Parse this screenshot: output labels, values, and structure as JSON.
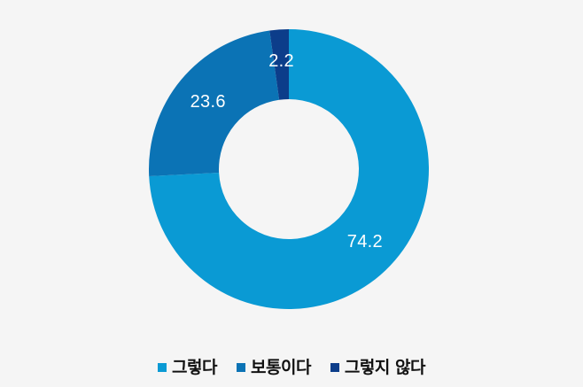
{
  "chart_data": {
    "type": "pie",
    "variant": "donut",
    "title": "",
    "categories": [
      "그렇다",
      "보통이다",
      "그렇지 않다"
    ],
    "values": [
      74.2,
      23.6,
      2.2
    ],
    "colors": [
      "#0a9ad4",
      "#0b73b5",
      "#0c3d8a"
    ],
    "data_labels": [
      "74.2",
      "23.6",
      "2.2"
    ],
    "start_angle_deg": 0,
    "direction": "clockwise",
    "legend_position": "bottom",
    "unit": "%"
  },
  "colors": {
    "background": "#f5f5f5",
    "label_text": "#ffffff",
    "legend_text": "#111111"
  },
  "legend": {
    "items": [
      {
        "label": "그렇다",
        "color": "#0a9ad4"
      },
      {
        "label": "보통이다",
        "color": "#0b73b5"
      },
      {
        "label": "그렇지 않다",
        "color": "#0c3d8a"
      }
    ]
  }
}
